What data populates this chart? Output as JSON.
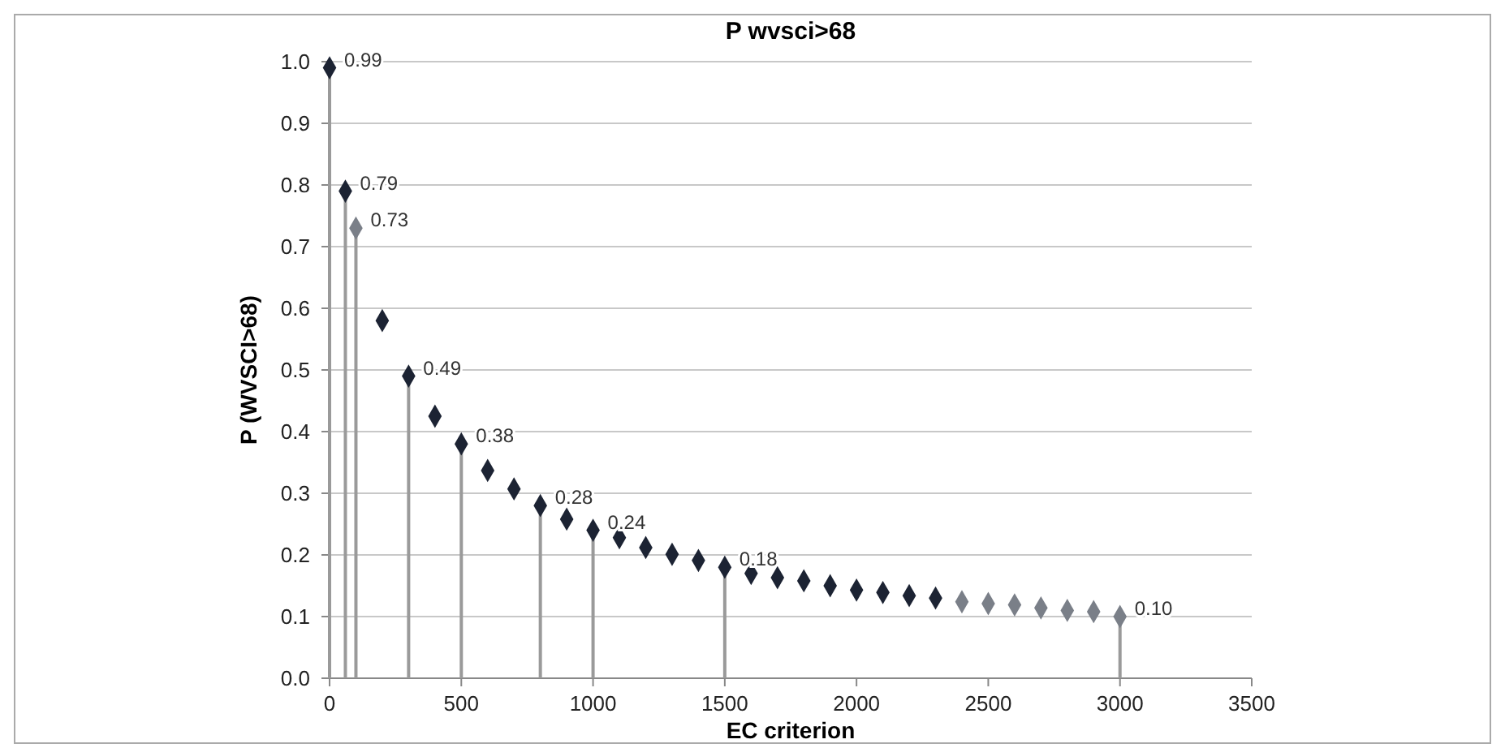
{
  "chart_data": {
    "type": "scatter",
    "title": "P wvsci>68",
    "xlabel": "EC criterion",
    "ylabel": "P (WVSCI>68)",
    "xlim": [
      0,
      3500
    ],
    "xticks": [
      0,
      500,
      1000,
      1500,
      2000,
      2500,
      3000,
      3500
    ],
    "ylim": [
      0,
      1
    ],
    "yticks": [
      {
        "value": 0,
        "label": "0.0"
      },
      {
        "value": 0.1,
        "label": "0.1"
      },
      {
        "value": 0.2,
        "label": "0.2"
      },
      {
        "value": 0.3,
        "label": "0.3"
      },
      {
        "value": 0.4,
        "label": "0.4"
      },
      {
        "value": 0.5,
        "label": "0.5"
      },
      {
        "value": 0.6,
        "label": "0.6"
      },
      {
        "value": 0.7,
        "label": "0.7"
      },
      {
        "value": 0.8,
        "label": "0.8"
      },
      {
        "value": 0.9,
        "label": "0.9"
      },
      {
        "value": 1,
        "label": "1.0"
      }
    ],
    "grid": "y",
    "marker": "diamond",
    "series": [
      {
        "type": "lollipop",
        "x": [
          0,
          60,
          100,
          300,
          500,
          800,
          1000,
          1500,
          3000
        ],
        "values": [
          0.99,
          0.79,
          0.73,
          0.49,
          0.38,
          0.28,
          0.24,
          0.18,
          0.1
        ],
        "value_labels": [
          "0.99",
          "0.79",
          "0.73",
          "0.49",
          "0.38",
          "0.28",
          "0.24",
          "0.18",
          "0.10"
        ],
        "colors": [
          "#1c2333",
          "#1c2333",
          "#7a7f88",
          "#1c2333",
          "#1c2333",
          "#1c2333",
          "#1c2333",
          "#1c2333",
          "#7a7f88"
        ]
      },
      {
        "x": [
          200,
          400,
          600,
          700,
          900,
          1100,
          1200,
          1300,
          1400,
          1600,
          1700,
          1800,
          1900,
          2000,
          2100,
          2200,
          2300,
          2400,
          2500,
          2600,
          2700,
          2800,
          2900
        ],
        "values": [
          0.58,
          0.425,
          0.337,
          0.307,
          0.258,
          0.228,
          0.212,
          0.201,
          0.191,
          0.17,
          0.163,
          0.158,
          0.15,
          0.143,
          0.139,
          0.134,
          0.13,
          0.124,
          0.121,
          0.119,
          0.114,
          0.11,
          0.108
        ],
        "colors": [
          "#1c2333",
          "#1c2333",
          "#1c2333",
          "#1c2333",
          "#1c2333",
          "#1c2333",
          "#1c2333",
          "#1c2333",
          "#1c2333",
          "#1c2333",
          "#1c2333",
          "#1c2333",
          "#1c2333",
          "#1c2333",
          "#1c2333",
          "#1c2333",
          "#1c2333",
          "#7a7f88",
          "#7a7f88",
          "#7a7f88",
          "#7a7f88",
          "#7a7f88",
          "#7a7f88"
        ]
      }
    ]
  }
}
